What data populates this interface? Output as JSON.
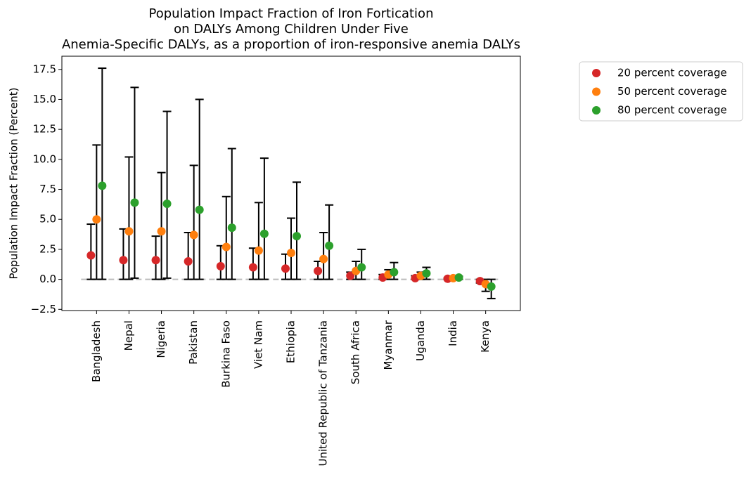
{
  "chart_data": {
    "type": "point_errorbar",
    "title": [
      "Population Impact Fraction of Iron Fortication",
      "on DALYs Among Children Under Five",
      "Anemia-Specific DALYs, as a proportion of iron-responsive anemia DALYs"
    ],
    "y_label": "Population Impact Fraction (Percent)",
    "categories": [
      "Bangladesh",
      "Nepal",
      "Nigeria",
      "Pakistan",
      "Burkina Faso",
      "Viet Nam",
      "Ethiopia",
      "United Republic of Tanzania",
      "South Africa",
      "Myanmar",
      "Uganda",
      "India",
      "Kenya"
    ],
    "series": [
      {
        "name": "20 percent coverage",
        "color": "#d62728",
        "values": [
          2.0,
          1.6,
          1.6,
          1.5,
          1.1,
          1.0,
          0.9,
          0.7,
          0.3,
          0.15,
          0.1,
          0.05,
          -0.15
        ],
        "lower": [
          0,
          0,
          0,
          0,
          0,
          0,
          0,
          0,
          0,
          0,
          0,
          0,
          -0.3
        ],
        "upper": [
          4.6,
          4.2,
          3.6,
          3.9,
          2.8,
          2.6,
          2.1,
          1.5,
          0.6,
          0.4,
          0.3,
          0.1,
          0
        ]
      },
      {
        "name": "50 percent coverage",
        "color": "#ff7f0e",
        "values": [
          5.0,
          4.0,
          4.0,
          3.7,
          2.7,
          2.4,
          2.2,
          1.7,
          0.7,
          0.4,
          0.3,
          0.1,
          -0.4
        ],
        "lower": [
          0,
          0,
          0,
          0,
          0,
          0,
          0,
          0,
          0,
          0,
          0,
          0,
          -1.0
        ],
        "upper": [
          11.2,
          10.2,
          8.9,
          9.5,
          6.9,
          6.4,
          5.1,
          3.9,
          1.5,
          0.8,
          0.6,
          0.2,
          0
        ]
      },
      {
        "name": "80 percent coverage",
        "color": "#2ca02c",
        "values": [
          7.8,
          6.4,
          6.3,
          5.8,
          4.3,
          3.8,
          3.6,
          2.8,
          1.0,
          0.6,
          0.5,
          0.15,
          -0.6
        ],
        "lower": [
          0,
          0.1,
          0.1,
          0,
          0,
          0,
          0,
          0,
          0,
          0,
          0,
          0,
          -1.6
        ],
        "upper": [
          17.6,
          16.0,
          14.0,
          15.0,
          10.9,
          10.1,
          8.1,
          6.2,
          2.5,
          1.4,
          1.0,
          0.25,
          0
        ]
      }
    ],
    "reference_line": 0,
    "ylim": [
      -2.6,
      18.6
    ],
    "yticks": [
      {
        "value": -2.5,
        "label": "−2.5"
      },
      {
        "value": 0,
        "label": "0.0"
      },
      2.5,
      {
        "value": 5,
        "label": "5.0"
      },
      7.5,
      {
        "value": 10,
        "label": "10.0"
      },
      12.5,
      {
        "value": 15,
        "label": "15.0"
      },
      17.5
    ],
    "legend": "outside-upper-right"
  }
}
